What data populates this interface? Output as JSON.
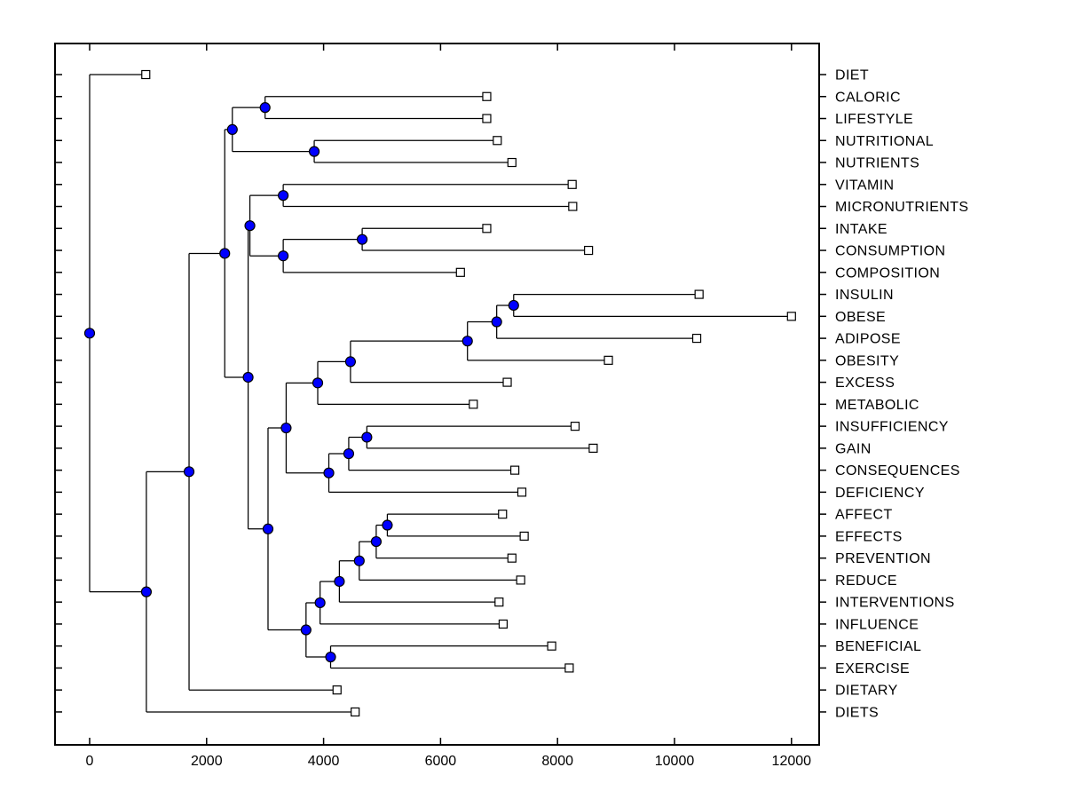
{
  "figure": {
    "background": "#ffffff"
  },
  "chart_data": {
    "type": "dendrogram",
    "orientation": "horizontal-root-left",
    "title": "",
    "xlabel": "",
    "ylabel": "",
    "grid": false,
    "x_axis": {
      "ticks": [
        0,
        2000,
        4000,
        6000,
        8000,
        10000,
        12000
      ],
      "range": [
        -600,
        12500
      ]
    },
    "styles": {
      "branch_color": "#000000",
      "node_marker_fill": "#0000ff",
      "node_marker_stroke": "#000000",
      "leaf_marker_fill": "#ffffff",
      "leaf_marker_stroke": "#000000"
    },
    "leaves": [
      {
        "label": "DIET",
        "value": 960
      },
      {
        "label": "CALORIC",
        "value": 6790
      },
      {
        "label": "LIFESTYLE",
        "value": 6790
      },
      {
        "label": "NUTRITIONAL",
        "value": 6970
      },
      {
        "label": "NUTRIENTS",
        "value": 7220
      },
      {
        "label": "VITAMIN",
        "value": 8250
      },
      {
        "label": "MICRONUTRIENTS",
        "value": 8260
      },
      {
        "label": "INTAKE",
        "value": 6790
      },
      {
        "label": "CONSUMPTION",
        "value": 8530
      },
      {
        "label": "COMPOSITION",
        "value": 6340
      },
      {
        "label": "INSULIN",
        "value": 10420
      },
      {
        "label": "OBESE",
        "value": 12000
      },
      {
        "label": "ADIPOSE",
        "value": 10380
      },
      {
        "label": "OBESITY",
        "value": 8870
      },
      {
        "label": "EXCESS",
        "value": 7140
      },
      {
        "label": "METABOLIC",
        "value": 6560
      },
      {
        "label": "INSUFFICIENCY",
        "value": 8300
      },
      {
        "label": "GAIN",
        "value": 8610
      },
      {
        "label": "CONSEQUENCES",
        "value": 7270
      },
      {
        "label": "DEFICIENCY",
        "value": 7390
      },
      {
        "label": "AFFECT",
        "value": 7060
      },
      {
        "label": "EFFECTS",
        "value": 7430
      },
      {
        "label": "PREVENTION",
        "value": 7220
      },
      {
        "label": "REDUCE",
        "value": 7370
      },
      {
        "label": "INTERVENTIONS",
        "value": 7000
      },
      {
        "label": "INFLUENCE",
        "value": 7070
      },
      {
        "label": "BENEFICIAL",
        "value": 7900
      },
      {
        "label": "EXERCISE",
        "value": 8200
      },
      {
        "label": "DIETARY",
        "value": 4230
      },
      {
        "label": "DIETS",
        "value": 4540
      }
    ],
    "nodes": [
      {
        "id": "root",
        "value": 0,
        "children": [
          "DIET",
          "u"
        ]
      },
      {
        "id": "u",
        "value": 970,
        "children": [
          "t",
          "DIETS"
        ]
      },
      {
        "id": "t",
        "value": 1700,
        "children": [
          "c8",
          "DIETARY"
        ]
      },
      {
        "id": "c8",
        "value": 2310,
        "children": [
          "c2",
          "d"
        ]
      },
      {
        "id": "c2",
        "value": 2440,
        "children": [
          "c1",
          "c3"
        ]
      },
      {
        "id": "c1",
        "value": 3000,
        "children": [
          "CALORIC",
          "LIFESTYLE"
        ]
      },
      {
        "id": "c3",
        "value": 3840,
        "children": [
          "NUTRITIONAL",
          "NUTRIENTS"
        ]
      },
      {
        "id": "d",
        "value": 2710,
        "children": [
          "c5",
          "j"
        ]
      },
      {
        "id": "c5",
        "value": 2740,
        "children": [
          "c4",
          "c7"
        ]
      },
      {
        "id": "c4",
        "value": 3310,
        "children": [
          "VITAMIN",
          "MICRONUTRIENTS"
        ]
      },
      {
        "id": "c7",
        "value": 3310,
        "children": [
          "c6",
          "COMPOSITION"
        ]
      },
      {
        "id": "c6",
        "value": 4660,
        "children": [
          "INTAKE",
          "CONSUMPTION"
        ]
      },
      {
        "id": "j",
        "value": 3050,
        "children": [
          "e",
          "p6"
        ]
      },
      {
        "id": "e",
        "value": 3360,
        "children": [
          "n15",
          "h"
        ]
      },
      {
        "id": "n15",
        "value": 3900,
        "children": [
          "n14",
          "METABOLIC"
        ]
      },
      {
        "id": "n14",
        "value": 4460,
        "children": [
          "n13",
          "EXCESS"
        ]
      },
      {
        "id": "n13",
        "value": 6460,
        "children": [
          "n12",
          "OBESITY"
        ]
      },
      {
        "id": "n12",
        "value": 6960,
        "children": [
          "n11",
          "ADIPOSE"
        ]
      },
      {
        "id": "n11",
        "value": 7250,
        "children": [
          "INSULIN",
          "OBESE"
        ]
      },
      {
        "id": "h",
        "value": 4090,
        "children": [
          "g",
          "DEFICIENCY"
        ]
      },
      {
        "id": "g",
        "value": 4430,
        "children": [
          "f",
          "CONSEQUENCES"
        ]
      },
      {
        "id": "f",
        "value": 4740,
        "children": [
          "INSUFFICIENCY",
          "GAIN"
        ]
      },
      {
        "id": "p6",
        "value": 3700,
        "children": [
          "p5",
          "p7"
        ]
      },
      {
        "id": "p5",
        "value": 3940,
        "children": [
          "p4",
          "INFLUENCE"
        ]
      },
      {
        "id": "p4",
        "value": 4270,
        "children": [
          "p3",
          "INTERVENTIONS"
        ]
      },
      {
        "id": "p3",
        "value": 4610,
        "children": [
          "p2",
          "REDUCE"
        ]
      },
      {
        "id": "p2",
        "value": 4900,
        "children": [
          "p1",
          "PREVENTION"
        ]
      },
      {
        "id": "p1",
        "value": 5090,
        "children": [
          "AFFECT",
          "EFFECTS"
        ]
      },
      {
        "id": "p7",
        "value": 4120,
        "children": [
          "BENEFICIAL",
          "EXERCISE"
        ]
      }
    ]
  }
}
